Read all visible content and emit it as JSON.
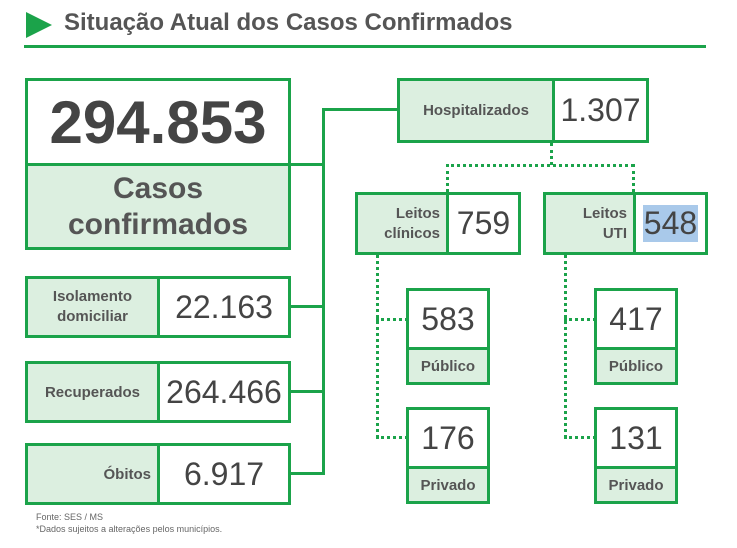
{
  "header": {
    "title": "Situação Atual dos Casos Confirmados"
  },
  "main_total": {
    "value": "294.853",
    "label_line1": "Casos",
    "label_line2": "confirmados"
  },
  "isolamento": {
    "label_line1": "Isolamento",
    "label_line2": "domiciliar",
    "value": "22.163"
  },
  "recuperados": {
    "label": "Recuperados",
    "value": "264.466"
  },
  "obitos": {
    "label": "Óbitos",
    "value": "6.917"
  },
  "hospitalizados": {
    "label": "Hospitalizados",
    "value": "1.307"
  },
  "leitos_clinicos": {
    "label_line1": "Leitos",
    "label_line2": "clínicos",
    "value": "759",
    "publico": {
      "value": "583",
      "label": "Público"
    },
    "privado": {
      "value": "176",
      "label": "Privado"
    }
  },
  "leitos_uti": {
    "label_line1": "Leitos",
    "label_line2": "UTI",
    "value": "548",
    "publico": {
      "value": "417",
      "label": "Público"
    },
    "privado": {
      "value": "131",
      "label": "Privado"
    }
  },
  "footer": {
    "source": "Fonte: SES / MS",
    "note": "*Dados sujeitos a alterações pelos municípios."
  },
  "colors": {
    "accent": "#1ba34a",
    "box_fill": "#dcefe0",
    "highlight": "#a9c9ea"
  }
}
